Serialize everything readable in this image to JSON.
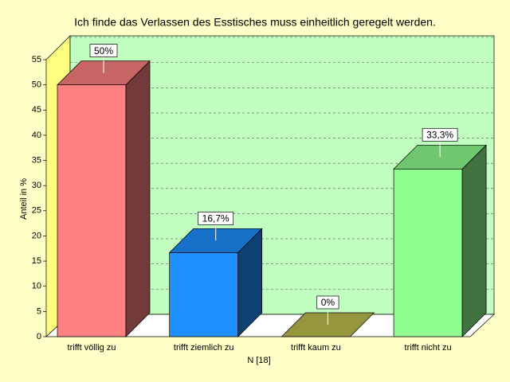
{
  "chart_data": {
    "type": "bar3d",
    "title": "Ich finde das Verlassen des Esstisches muss einheitlich geregelt werden.",
    "ylabel": "Anteil in %",
    "xlabel": "N [18]",
    "categories": [
      "trifft völlig zu",
      "trifft ziemlich zu",
      "trifft kaum zu",
      "trifft nicht zu"
    ],
    "values": [
      50,
      16.7,
      0,
      33.3
    ],
    "value_labels": [
      "50%",
      "16,7%",
      "0%",
      "33,3%"
    ],
    "colors": [
      "#ff8080",
      "#1e90ff",
      "#c0c050",
      "#90ff90"
    ],
    "ylim": [
      0,
      55
    ],
    "yticks": [
      0,
      5,
      10,
      15,
      20,
      25,
      30,
      35,
      40,
      45,
      50,
      55
    ],
    "grid": true
  }
}
